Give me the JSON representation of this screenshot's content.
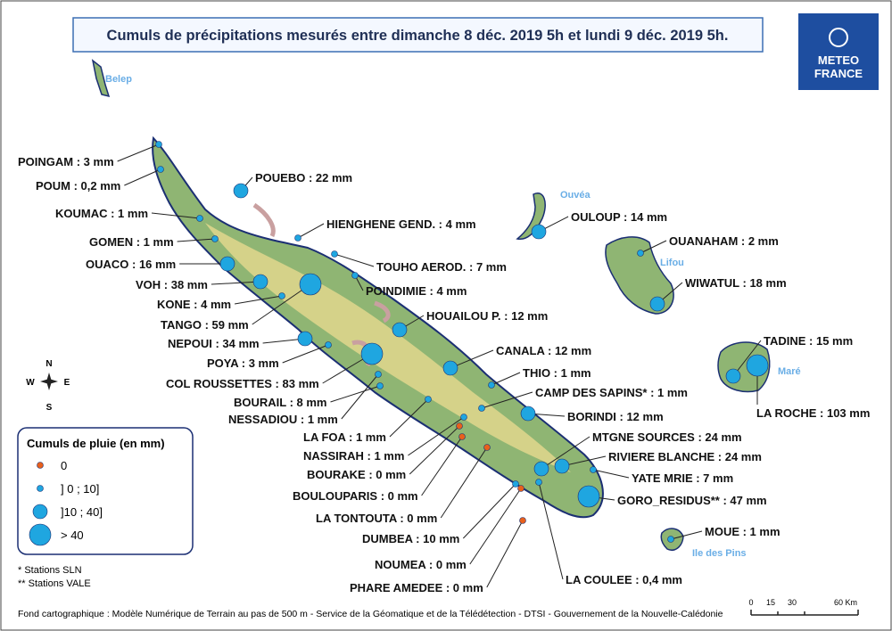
{
  "title": "Cumuls de précipitations mesurés entre dimanche 8 déc. 2019 5h et lundi 9 déc. 2019 5h.",
  "logo": [
    "METEO",
    "FRANCE"
  ],
  "islands": [
    "Belep",
    "Ouvéa",
    "Lifou",
    "Maré",
    "Ile des Pins"
  ],
  "compass": [
    "N",
    "S",
    "E",
    "W"
  ],
  "legend": {
    "title": "Cumuls de pluie (en mm)",
    "classes": [
      {
        "label": "0",
        "range": [
          0,
          0
        ]
      },
      {
        "label": "] 0 ; 10]",
        "range": [
          0,
          10
        ]
      },
      {
        "label": "]10 ; 40]",
        "range": [
          10,
          40
        ]
      },
      {
        "label": "> 40",
        "range": [
          40,
          null
        ]
      }
    ]
  },
  "notes": [
    "* Stations SLN",
    "** Stations VALE"
  ],
  "source": "Fond cartographique : Modèle Numérique de Terrain au pas de 500 m - Service de la Géomatique et de la Télédétection - DTSI - Gouvernement de la Nouvelle-Calédonie",
  "scale_bar": [
    "0",
    "15",
    "30",
    "60 Km"
  ],
  "stations": [
    {
      "label": "POINGAM :  3 mm",
      "value": 3
    },
    {
      "label": "POUM :  0,2 mm",
      "value": 0.2
    },
    {
      "label": "KOUMAC :  1 mm",
      "value": 1
    },
    {
      "label": "GOMEN :  1 mm",
      "value": 1
    },
    {
      "label": "OUACO :  16 mm",
      "value": 16
    },
    {
      "label": "VOH :  38 mm",
      "value": 38
    },
    {
      "label": "KONE :  4 mm",
      "value": 4
    },
    {
      "label": "TANGO :  59 mm",
      "value": 59
    },
    {
      "label": "NEPOUI :  34 mm",
      "value": 34
    },
    {
      "label": "POYA :  3 mm",
      "value": 3
    },
    {
      "label": "COL ROUSSETTES :  83 mm",
      "value": 83
    },
    {
      "label": "BOURAIL :  8 mm",
      "value": 8
    },
    {
      "label": "NESSADIOU :  1 mm",
      "value": 1
    },
    {
      "label": "LA FOA :  1 mm",
      "value": 1
    },
    {
      "label": "NASSIRAH :  1 mm",
      "value": 1
    },
    {
      "label": "BOURAKE :  0 mm",
      "value": 0
    },
    {
      "label": "BOULOUPARIS :  0 mm",
      "value": 0
    },
    {
      "label": "LA TONTOUTA :  0 mm",
      "value": 0
    },
    {
      "label": "DUMBEA :  10 mm",
      "value": 10
    },
    {
      "label": "NOUMEA :  0 mm",
      "value": 0
    },
    {
      "label": "PHARE AMEDEE :  0 mm",
      "value": 0
    },
    {
      "label": "LA COULEE :  0,4 mm",
      "value": 0.4
    },
    {
      "label": "GORO_RESIDUS** :  47 mm",
      "value": 47
    },
    {
      "label": "YATE MRIE :  7 mm",
      "value": 7
    },
    {
      "label": "RIVIERE BLANCHE :  24 mm",
      "value": 24
    },
    {
      "label": "MTGNE SOURCES :  24 mm",
      "value": 24
    },
    {
      "label": "BORINDI :  12 mm",
      "value": 12
    },
    {
      "label": "CAMP DES SAPINS* :  1 mm",
      "value": 1
    },
    {
      "label": "THIO :  1 mm",
      "value": 1
    },
    {
      "label": "CANALA :  12 mm",
      "value": 12
    },
    {
      "label": "HOUAILOU P. :  12 mm",
      "value": 12
    },
    {
      "label": "POINDIMIE :  4 mm",
      "value": 4
    },
    {
      "label": "TOUHO AEROD. :  7 mm",
      "value": 7
    },
    {
      "label": "HIENGHENE GEND. :  4 mm",
      "value": 4
    },
    {
      "label": "POUEBO :  22 mm",
      "value": 22
    },
    {
      "label": "OULOUP :  14 mm",
      "value": 14
    },
    {
      "label": "OUANAHAM :  2 mm",
      "value": 2
    },
    {
      "label": "WIWATUL :  18 mm",
      "value": 18
    },
    {
      "label": "TADINE :  15 mm",
      "value": 15
    },
    {
      "label": "LA ROCHE :  103 mm",
      "value": 103
    },
    {
      "label": "MOUE :  1 mm",
      "value": 1
    }
  ]
}
